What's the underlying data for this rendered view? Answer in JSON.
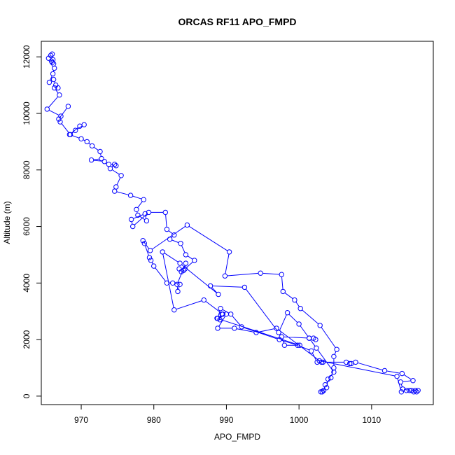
{
  "chart_data": {
    "type": "line",
    "title": "ORCAS RF11 APO_FMPD",
    "xlabel": "APO_FMPD",
    "ylabel": "Altitude (m)",
    "xlim": [
      964.5,
      1018.5
    ],
    "ylim": [
      -300,
      12550
    ],
    "xticks": [
      970,
      980,
      990,
      1000,
      1010
    ],
    "yticks": [
      0,
      2000,
      4000,
      6000,
      8000,
      10000,
      12000
    ],
    "grid": false,
    "legend": "none",
    "marker": "open-circle",
    "colors": {
      "series": "#0000ff",
      "axes": "#000000",
      "background": "#ffffff"
    },
    "series": [
      {
        "x": [
          966.0,
          965.8,
          965.5,
          966.1,
          965.9,
          966.0,
          966.2,
          966.3,
          966.1,
          965.6,
          966.2,
          966.5,
          966.8,
          966.3,
          967.0,
          965.3,
          967.2,
          968.2,
          966.9,
          967.1,
          968.5,
          969.2,
          970.4,
          969.8,
          968.4,
          970.0,
          970.8,
          971.5,
          972.6,
          972.8,
          971.4,
          973.2,
          973.8,
          974.8,
          974.6,
          974.0,
          975.5,
          974.8,
          974.6,
          976.8,
          978.6,
          977.6,
          977.8,
          979.0,
          978.8,
          976.9,
          977.1,
          979.3,
          981.6,
          981.8,
          982.8,
          982.2,
          983.7,
          984.4,
          985.6,
          984.3,
          983.8,
          983.5,
          984.1,
          984.4,
          983.2,
          983.3,
          983.6,
          982.6,
          981.8,
          980.0,
          979.6,
          979.4,
          978.7,
          978.5,
          979.5,
          984.6,
          990.4,
          989.8,
          994.7,
          997.6,
          997.8,
          999.4,
          1000.2,
          1002.9,
          1005.2,
          1004.8,
          1004.8,
          1004.4,
          1003.6,
          1003.4,
          1003.2,
          1003.4,
          1003.0,
          1003.8,
          1004.0,
          1004.8,
          1002.4,
          1001.4,
          1000.0,
          998.4,
          997.2,
          992.5,
          987.8,
          988.9,
          983.6,
          981.2,
          982.8,
          986.9,
          989.5,
          989.1,
          989.4,
          988.8,
          989.2,
          990.6,
          992.1,
          997.3,
          999.8,
          1001.7,
          1002.5,
          1003.3,
          1006.5,
          1007.0,
          1007.2,
          1007.8,
          1011.8,
          1014.2,
          1015.7,
          1014.0,
          1014.3,
          1015.2,
          1015.5,
          1016.0,
          1016.2,
          1016.4,
          1015.8,
          1014.8,
          1014.1,
          1013.5,
          1002.8,
          1003.1,
          996.9,
          994.1,
          991.1,
          988.8,
          990.0,
          988.7,
          1000.1,
          998.0,
          997.6,
          1001.4,
          1002.0,
          1002.3
        ],
        "y": [
          12100,
          12050,
          11950,
          11900,
          11850,
          11800,
          11750,
          11600,
          11400,
          11100,
          11200,
          11000,
          10900,
          10900,
          10650,
          10150,
          9900,
          10250,
          9800,
          9700,
          9250,
          9400,
          9600,
          9550,
          9250,
          9100,
          9000,
          8850,
          8650,
          8400,
          8350,
          8300,
          8200,
          8150,
          8200,
          8050,
          7800,
          7400,
          7250,
          7100,
          6950,
          6600,
          6400,
          6200,
          6450,
          6250,
          6000,
          6500,
          6500,
          5900,
          5700,
          5550,
          5400,
          5000,
          4800,
          4500,
          4400,
          4500,
          4450,
          4700,
          3950,
          3700,
          3950,
          4000,
          4000,
          4600,
          4800,
          4900,
          5400,
          5500,
          5150,
          6050,
          5100,
          4250,
          4350,
          4300,
          3700,
          3400,
          3100,
          2500,
          1650,
          1400,
          1000,
          650,
          400,
          200,
          150,
          200,
          150,
          300,
          600,
          850,
          1700,
          2050,
          2550,
          2950,
          2250,
          3850,
          3900,
          3600,
          4700,
          5100,
          3050,
          3400,
          2900,
          2700,
          2900,
          2750,
          3100,
          2900,
          2450,
          2000,
          1800,
          1600,
          1200,
          1200,
          1200,
          1150,
          1150,
          1200,
          900,
          800,
          550,
          500,
          250,
          200,
          200,
          200,
          150,
          200,
          150,
          200,
          150,
          700,
          1250,
          1200,
          2400,
          2250,
          2400,
          2400,
          2900,
          2750,
          1800,
          1800,
          2100,
          2050,
          2050,
          2000
        ]
      }
    ]
  }
}
